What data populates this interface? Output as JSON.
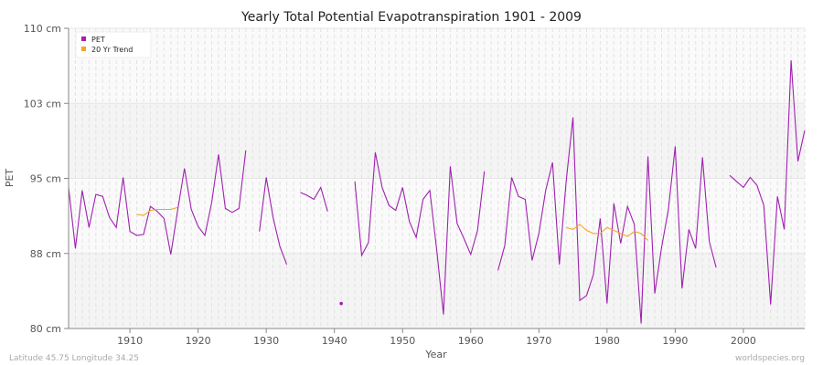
{
  "chart_data": {
    "type": "line",
    "title": "Yearly Total Potential Evapotranspiration 1901 - 2009",
    "xlabel": "Year",
    "ylabel": "PET",
    "xlim": [
      1901,
      2009
    ],
    "ylim": [
      80,
      110
    ],
    "x_ticks": [
      1910,
      1920,
      1930,
      1940,
      1950,
      1960,
      1970,
      1980,
      1990,
      2000
    ],
    "y_ticks": [
      {
        "value": 80,
        "label": "80 cm"
      },
      {
        "value": 87.5,
        "label": "88 cm"
      },
      {
        "value": 95,
        "label": "95 cm"
      },
      {
        "value": 102.5,
        "label": "103 cm"
      },
      {
        "value": 110,
        "label": "110 cm"
      }
    ],
    "grid": true,
    "legend_position": "top-left",
    "series": [
      {
        "name": "PET",
        "color": "#a020b0",
        "start_year": 1901,
        "values": [
          94.1,
          88.0,
          93.8,
          90.1,
          93.4,
          93.2,
          91.1,
          90.1,
          95.1,
          89.7,
          89.3,
          89.4,
          92.2,
          91.7,
          91.0,
          87.4,
          91.8,
          96.0,
          91.9,
          90.2,
          89.3,
          92.6,
          97.4,
          92.0,
          91.6,
          92.0,
          97.8,
          null,
          89.7,
          95.1,
          91.1,
          88.2,
          86.4,
          null,
          93.6,
          93.3,
          92.9,
          94.1,
          91.7,
          null,
          82.5,
          null,
          94.7,
          87.3,
          88.6,
          97.6,
          94.1,
          92.3,
          91.8,
          94.1,
          90.7,
          89.1,
          92.9,
          93.8,
          87.9,
          81.4,
          96.2,
          90.5,
          89.0,
          87.4,
          89.8,
          95.7,
          null,
          85.8,
          88.3,
          95.1,
          93.2,
          92.9,
          86.8,
          89.5,
          93.8,
          96.6,
          86.4,
          94.7,
          101.1,
          82.8,
          83.3,
          85.4,
          91.0,
          82.5,
          92.5,
          88.5,
          92.2,
          90.4,
          80.5,
          97.2,
          83.5,
          88.1,
          91.9,
          98.2,
          84.0,
          89.9,
          88.0,
          97.1,
          88.7,
          86.1,
          null,
          95.3,
          94.7,
          94.1,
          95.1,
          94.3,
          92.3,
          82.4,
          93.2,
          89.9,
          106.8,
          96.7,
          99.8
        ]
      },
      {
        "name": "20 Yr Trend",
        "color": "#f5a623",
        "segments": [
          {
            "start_year": 1911,
            "values": [
              91.4,
              91.3,
              91.8,
              91.9,
              91.9,
              91.9,
              92.1
            ]
          },
          {
            "start_year": 1974,
            "values": [
              90.1,
              89.9,
              90.4,
              89.8,
              89.5,
              89.5,
              90.1,
              89.8,
              89.5,
              89.2,
              89.7,
              89.5,
              88.8
            ]
          }
        ]
      }
    ]
  },
  "footer": {
    "location": "Latitude 45.75 Longitude 34.25",
    "source": "worldspecies.org"
  }
}
